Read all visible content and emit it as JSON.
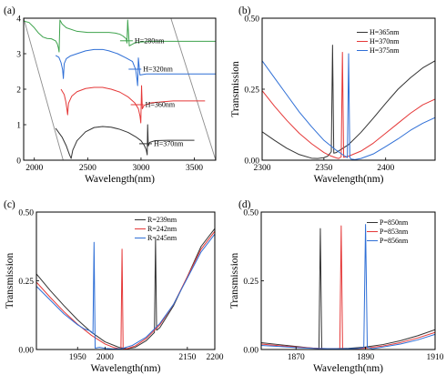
{
  "chart_data": [
    {
      "id": "a",
      "panel_label": "(a)",
      "type": "line",
      "xlabel": "Wavelength(nm)",
      "ylabel": "Transmission",
      "xlim": [
        1900,
        3700
      ],
      "ylim": [
        0,
        4
      ],
      "xticks": [
        2000,
        2500,
        3000,
        3500
      ],
      "yticks": [
        0,
        1,
        2,
        3,
        4
      ],
      "guide_lines": [
        {
          "x": [
            1900,
            2270
          ],
          "y": [
            4.0,
            0.0
          ]
        },
        {
          "x": [
            3280,
            3700
          ],
          "y": [
            4.0,
            0.0
          ]
        }
      ],
      "series": [
        {
          "name": "H=280nm",
          "color": "#3ea34d",
          "label_at": [
            2940,
            3.3
          ],
          "x": [
            1900,
            1950,
            2000,
            2040,
            2080,
            2120,
            2160,
            2200,
            2215,
            2225,
            2232,
            2240,
            2260,
            2300,
            2400,
            2500,
            2600,
            2700,
            2760,
            2800,
            2830,
            2850,
            2862,
            2868,
            2875,
            2890,
            2950,
            3100,
            3400,
            3700
          ],
          "y": [
            3.92,
            3.88,
            3.73,
            3.58,
            3.47,
            3.43,
            3.42,
            3.36,
            3.28,
            3.17,
            3.05,
            3.95,
            3.84,
            3.73,
            3.63,
            3.6,
            3.6,
            3.6,
            3.58,
            3.55,
            3.5,
            3.45,
            3.42,
            3.3,
            3.95,
            3.22,
            3.32,
            3.35,
            3.35,
            3.35
          ]
        },
        {
          "name": "H=320nm",
          "color": "#2f6fd6",
          "label_at": [
            3020,
            2.5
          ],
          "x": [
            2200,
            2230,
            2250,
            2265,
            2272,
            2280,
            2300,
            2340,
            2400,
            2480,
            2560,
            2640,
            2700,
            2780,
            2860,
            2920,
            2950,
            2962,
            2968,
            2975,
            2990,
            3050,
            3200,
            3400,
            3700
          ],
          "y": [
            2.95,
            2.9,
            2.75,
            2.55,
            2.3,
            2.72,
            2.86,
            2.94,
            3.0,
            3.08,
            3.12,
            3.12,
            3.08,
            3.0,
            2.88,
            2.78,
            2.55,
            2.28,
            2.1,
            2.88,
            2.4,
            2.43,
            2.43,
            2.43,
            2.43
          ]
        },
        {
          "name": "H=360nm",
          "color": "#e53838",
          "label_at": [
            3040,
            1.5
          ],
          "x": [
            2250,
            2280,
            2295,
            2305,
            2312,
            2320,
            2350,
            2400,
            2480,
            2560,
            2640,
            2720,
            2800,
            2880,
            2940,
            2975,
            2990,
            2998,
            3005,
            3012,
            3030,
            3100,
            3300,
            3600
          ],
          "y": [
            2.0,
            1.85,
            1.65,
            1.45,
            1.28,
            1.6,
            1.8,
            1.93,
            2.02,
            2.05,
            2.05,
            2.0,
            1.92,
            1.78,
            1.62,
            1.45,
            1.25,
            1.05,
            2.1,
            1.45,
            1.55,
            1.62,
            1.67,
            1.67
          ]
        },
        {
          "name": "H=370nm",
          "color": "#333333",
          "label_at": [
            3120,
            0.4
          ],
          "x": [
            2200,
            2260,
            2300,
            2330,
            2345,
            2360,
            2400,
            2480,
            2560,
            2640,
            2720,
            2800,
            2880,
            2950,
            3000,
            3030,
            3048,
            3058,
            3062,
            3068,
            3080,
            3130,
            3250,
            3500
          ],
          "y": [
            0.9,
            0.65,
            0.4,
            0.15,
            0.05,
            0.28,
            0.55,
            0.8,
            0.92,
            0.95,
            0.93,
            0.87,
            0.78,
            0.66,
            0.55,
            0.42,
            0.3,
            0.15,
            1.0,
            0.4,
            0.5,
            0.55,
            0.56,
            0.56
          ]
        }
      ]
    },
    {
      "id": "b",
      "panel_label": "(b)",
      "type": "line",
      "xlabel": "Wavelength(nm)",
      "ylabel": "Transmission",
      "xlim": [
        2300,
        2440
      ],
      "ylim": [
        0,
        0.5
      ],
      "xticks": [
        2300,
        2350,
        2400
      ],
      "yticks": [
        0.0,
        0.25,
        0.5
      ],
      "ytick_labels": [
        "0.00",
        "0.25",
        "0.50"
      ],
      "series": [
        {
          "name": "H=365nm",
          "color": "#333333",
          "x": [
            2300,
            2310,
            2320,
            2330,
            2340,
            2345,
            2350,
            2353,
            2355,
            2356,
            2357,
            2358,
            2360,
            2370,
            2380,
            2390,
            2400,
            2410,
            2420,
            2430,
            2440
          ],
          "y": [
            0.1,
            0.07,
            0.042,
            0.02,
            0.007,
            0.006,
            0.009,
            0.014,
            0.024,
            0.03,
            0.405,
            0.025,
            0.027,
            0.055,
            0.098,
            0.148,
            0.2,
            0.25,
            0.29,
            0.325,
            0.35
          ]
        },
        {
          "name": "H=370nm",
          "color": "#e53838",
          "x": [
            2300,
            2310,
            2320,
            2330,
            2340,
            2350,
            2355,
            2360,
            2362,
            2364,
            2365,
            2366,
            2368,
            2370,
            2380,
            2390,
            2400,
            2410,
            2420,
            2430,
            2440
          ],
          "y": [
            0.245,
            0.19,
            0.14,
            0.095,
            0.058,
            0.027,
            0.016,
            0.008,
            0.006,
            0.012,
            0.38,
            0.01,
            0.012,
            0.014,
            0.032,
            0.06,
            0.095,
            0.13,
            0.165,
            0.195,
            0.215
          ]
        },
        {
          "name": "H=375nm",
          "color": "#2f6fd6",
          "x": [
            2300,
            2310,
            2320,
            2330,
            2340,
            2350,
            2360,
            2365,
            2368,
            2369,
            2370,
            2371,
            2372,
            2375,
            2380,
            2390,
            2400,
            2410,
            2420,
            2430,
            2440
          ],
          "y": [
            0.35,
            0.29,
            0.23,
            0.17,
            0.118,
            0.07,
            0.035,
            0.02,
            0.012,
            0.009,
            0.375,
            0.009,
            0.004,
            0.002,
            0.006,
            0.022,
            0.048,
            0.075,
            0.105,
            0.13,
            0.15
          ]
        }
      ]
    },
    {
      "id": "c",
      "panel_label": "(c)",
      "type": "line",
      "xlabel": "Wavelength(nm)",
      "ylabel": "Transmission",
      "xlim": [
        1875,
        2200
      ],
      "ylim": [
        0,
        0.5
      ],
      "xticks": [
        1950,
        2000,
        2150,
        2200
      ],
      "xtick_labels": [
        "1950",
        "2000",
        "2150",
        "2200"
      ],
      "yticks": [
        0.0,
        0.25,
        0.5
      ],
      "ytick_labels": [
        "0.00",
        "0.25",
        "0.50"
      ],
      "series": [
        {
          "name": "R=239nm",
          "color": "#333333",
          "x": [
            1875,
            1900,
            1925,
            1950,
            1975,
            2000,
            2025,
            2040,
            2055,
            2075,
            2090,
            2092,
            2094,
            2100,
            2125,
            2150,
            2175,
            2200
          ],
          "y": [
            0.275,
            0.215,
            0.16,
            0.108,
            0.063,
            0.028,
            0.008,
            0.003,
            0.008,
            0.032,
            0.062,
            0.405,
            0.07,
            0.08,
            0.16,
            0.265,
            0.375,
            0.44
          ]
        },
        {
          "name": "R=242nm",
          "color": "#e53838",
          "x": [
            1875,
            1900,
            1925,
            1950,
            1975,
            2000,
            2015,
            2025,
            2029,
            2031,
            2033,
            2040,
            2055,
            2075,
            2100,
            2125,
            2150,
            2175,
            2200
          ],
          "y": [
            0.245,
            0.19,
            0.138,
            0.092,
            0.052,
            0.02,
            0.008,
            0.003,
            0.001,
            0.365,
            0.001,
            0.003,
            0.013,
            0.04,
            0.09,
            0.165,
            0.265,
            0.365,
            0.43
          ]
        },
        {
          "name": "R=245nm",
          "color": "#2f6fd6",
          "x": [
            1875,
            1900,
            1925,
            1950,
            1962,
            1970,
            1975,
            1978,
            1980,
            1982,
            1990,
            2000,
            2015,
            2030,
            2050,
            2075,
            2100,
            2125,
            2150,
            2175,
            2200
          ],
          "y": [
            0.23,
            0.18,
            0.13,
            0.09,
            0.075,
            0.07,
            0.065,
            0.058,
            0.39,
            0.005,
            0.008,
            0.004,
            0.002,
            0.003,
            0.015,
            0.045,
            0.095,
            0.165,
            0.26,
            0.355,
            0.42
          ]
        }
      ]
    },
    {
      "id": "d",
      "panel_label": "(d)",
      "type": "line",
      "xlabel": "Wavelength(nm)",
      "ylabel": "Transmission",
      "xlim": [
        1860,
        1910
      ],
      "ylim": [
        0,
        0.5
      ],
      "xticks": [
        1870,
        1890,
        1910
      ],
      "yticks": [
        0.0,
        0.25,
        0.5
      ],
      "ytick_labels": [
        "0.00",
        "0.25",
        "0.50"
      ],
      "series": [
        {
          "name": "P=850nm",
          "color": "#333333",
          "x": [
            1860,
            1865,
            1870,
            1874,
            1876,
            1876.6,
            1877,
            1877.4,
            1878,
            1880,
            1885,
            1890,
            1895,
            1900,
            1905,
            1910
          ],
          "y": [
            0.025,
            0.018,
            0.011,
            0.006,
            0.004,
            0.003,
            0.44,
            0.003,
            0.003,
            0.003,
            0.004,
            0.009,
            0.018,
            0.032,
            0.05,
            0.072
          ]
        },
        {
          "name": "P=853nm",
          "color": "#e53838",
          "x": [
            1860,
            1865,
            1870,
            1875,
            1880,
            1882.6,
            1883,
            1883.4,
            1885,
            1890,
            1895,
            1900,
            1905,
            1910
          ],
          "y": [
            0.02,
            0.014,
            0.009,
            0.005,
            0.003,
            0.002,
            0.45,
            0.002,
            0.002,
            0.005,
            0.013,
            0.025,
            0.042,
            0.062
          ]
        },
        {
          "name": "P=856nm",
          "color": "#2f6fd6",
          "x": [
            1860,
            1865,
            1870,
            1875,
            1880,
            1885,
            1888,
            1889.5,
            1890,
            1890.5,
            1892,
            1895,
            1900,
            1905,
            1910
          ],
          "y": [
            0.015,
            0.011,
            0.007,
            0.004,
            0.003,
            0.003,
            0.004,
            0.008,
            0.455,
            0.008,
            0.003,
            0.009,
            0.02,
            0.035,
            0.055
          ]
        }
      ]
    }
  ]
}
